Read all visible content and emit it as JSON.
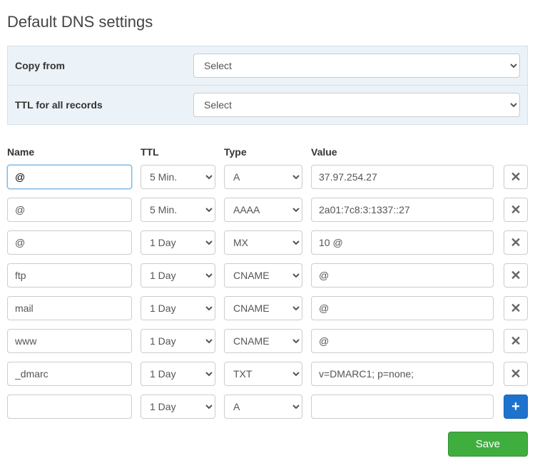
{
  "title": "Default DNS settings",
  "top": {
    "copy_from_label": "Copy from",
    "copy_from_value": "Select",
    "ttl_all_label": "TTL for all records",
    "ttl_all_value": "Select"
  },
  "columns": {
    "name": "Name",
    "ttl": "TTL",
    "type": "Type",
    "value": "Value"
  },
  "records": [
    {
      "name": "@",
      "ttl": "5 Min.",
      "type": "A",
      "value": "37.97.254.27",
      "action": "delete",
      "focused": true
    },
    {
      "name": "@",
      "ttl": "5 Min.",
      "type": "AAAA",
      "value": "2a01:7c8:3:1337::27",
      "action": "delete"
    },
    {
      "name": "@",
      "ttl": "1 Day",
      "type": "MX",
      "value": "10 @",
      "action": "delete"
    },
    {
      "name": "ftp",
      "ttl": "1 Day",
      "type": "CNAME",
      "value": "@",
      "action": "delete"
    },
    {
      "name": "mail",
      "ttl": "1 Day",
      "type": "CNAME",
      "value": "@",
      "action": "delete"
    },
    {
      "name": "www",
      "ttl": "1 Day",
      "type": "CNAME",
      "value": "@",
      "action": "delete"
    },
    {
      "name": "_dmarc",
      "ttl": "1 Day",
      "type": "TXT",
      "value": "v=DMARC1; p=none;",
      "action": "delete"
    },
    {
      "name": "",
      "ttl": "1 Day",
      "type": "A",
      "value": "",
      "action": "add"
    }
  ],
  "save_label": "Save",
  "colors": {
    "panel_bg": "#ebf2f8",
    "panel_border": "#d7e0e8",
    "add_btn_bg": "#1e73cc",
    "save_btn_bg": "#3fae3f"
  }
}
